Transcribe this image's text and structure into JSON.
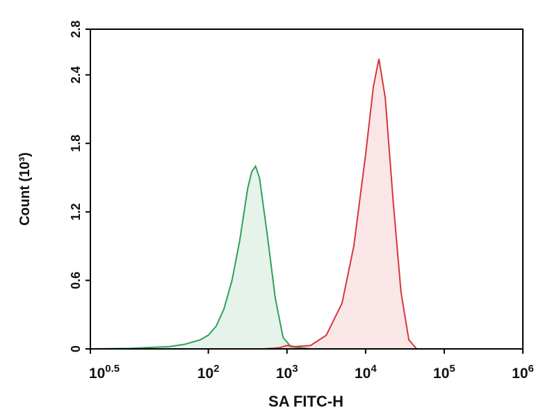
{
  "chart_data": {
    "type": "histogram-overlay",
    "xlabel": "SA FITC-H",
    "ylabel": "Count (10³)",
    "xscale": "log",
    "xlim": [
      3.162,
      1000000
    ],
    "ylim": [
      0,
      2.8
    ],
    "yticks": [
      0,
      0.6,
      1.2,
      1.8,
      2.4,
      2.8
    ],
    "xticks": [
      {
        "value": 3.162,
        "label": {
          "base": "10",
          "exponent": "0.5"
        }
      },
      {
        "value": 100,
        "label": {
          "base": "10",
          "exponent": "2"
        }
      },
      {
        "value": 1000,
        "label": {
          "base": "10",
          "exponent": "3"
        }
      },
      {
        "value": 10000,
        "label": {
          "base": "10",
          "exponent": "4"
        }
      },
      {
        "value": 100000,
        "label": {
          "base": "10",
          "exponent": "5"
        }
      },
      {
        "value": 1000000,
        "label": {
          "base": "10",
          "exponent": "6"
        }
      }
    ],
    "series": [
      {
        "color": "#2ca05a",
        "x": [
          3.162,
          10,
          31.6,
          50,
          79,
          100,
          126,
          158,
          200,
          251,
          316,
          355,
          398,
          447,
          562,
          708,
          891,
          1122,
          1995
        ],
        "values": [
          0,
          0.005,
          0.02,
          0.04,
          0.08,
          0.12,
          0.2,
          0.35,
          0.6,
          0.95,
          1.4,
          1.55,
          1.6,
          1.5,
          1.0,
          0.45,
          0.1,
          0.02,
          0
        ]
      },
      {
        "color": "#d8343c",
        "x": [
          501,
          794,
          1000,
          1259,
          1995,
          3162,
          5012,
          7079,
          10000,
          12589,
          14791,
          17783,
          22387,
          28184,
          35481,
          44668
        ],
        "values": [
          0,
          0.01,
          0.03,
          0.02,
          0.03,
          0.12,
          0.4,
          0.9,
          1.7,
          2.3,
          2.54,
          2.2,
          1.3,
          0.5,
          0.08,
          0
        ]
      }
    ]
  }
}
